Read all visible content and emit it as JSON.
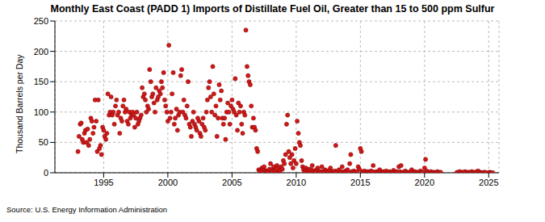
{
  "chart_data": {
    "type": "scatter",
    "title": "Monthly East Coast (PADD 1) Imports of Distillate Fuel Oil, Greater than 15 to 500 ppm Sulfur",
    "y_label": "Thousand Barrels per Day",
    "source": "Source: U.S. Energy Information Administration",
    "color": "#cc1a1a",
    "marker": "circle",
    "grid": true,
    "xlim": [
      1991.2,
      2025.8
    ],
    "xticks": [
      1995,
      2000,
      2005,
      2010,
      2015,
      2020,
      2025
    ],
    "ylim": [
      0,
      250
    ],
    "yticks": [
      0,
      50,
      100,
      150,
      200,
      250
    ],
    "x": [
      1993.0,
      1993.08,
      1993.17,
      1993.25,
      1993.33,
      1993.42,
      1993.5,
      1993.58,
      1993.67,
      1993.75,
      1993.83,
      1993.92,
      1994.0,
      1994.08,
      1994.17,
      1994.25,
      1994.33,
      1994.42,
      1994.5,
      1994.58,
      1994.67,
      1994.75,
      1994.83,
      1994.92,
      1995.0,
      1995.08,
      1995.17,
      1995.25,
      1995.33,
      1995.42,
      1995.5,
      1995.58,
      1995.67,
      1995.75,
      1995.83,
      1995.92,
      1996.0,
      1996.08,
      1996.17,
      1996.25,
      1996.33,
      1996.42,
      1996.5,
      1996.58,
      1996.67,
      1996.75,
      1996.83,
      1996.92,
      1997.0,
      1997.08,
      1997.17,
      1997.25,
      1997.33,
      1997.42,
      1997.5,
      1997.58,
      1997.67,
      1997.75,
      1997.83,
      1997.92,
      1998.0,
      1998.08,
      1998.17,
      1998.25,
      1998.33,
      1998.42,
      1998.5,
      1998.58,
      1998.67,
      1998.75,
      1998.83,
      1998.92,
      1999.0,
      1999.08,
      1999.17,
      1999.25,
      1999.33,
      1999.42,
      1999.5,
      1999.58,
      1999.67,
      1999.75,
      1999.83,
      1999.92,
      2000.0,
      2000.08,
      2000.17,
      2000.25,
      2000.33,
      2000.42,
      2000.5,
      2000.58,
      2000.67,
      2000.75,
      2000.83,
      2000.92,
      2001.0,
      2001.08,
      2001.17,
      2001.25,
      2001.33,
      2001.42,
      2001.5,
      2001.58,
      2001.67,
      2001.75,
      2001.83,
      2001.92,
      2002.0,
      2002.08,
      2002.17,
      2002.25,
      2002.33,
      2002.42,
      2002.5,
      2002.58,
      2002.67,
      2002.75,
      2002.83,
      2002.92,
      2003.0,
      2003.08,
      2003.17,
      2003.25,
      2003.33,
      2003.42,
      2003.5,
      2003.58,
      2003.67,
      2003.75,
      2003.83,
      2003.92,
      2004.0,
      2004.08,
      2004.17,
      2004.25,
      2004.33,
      2004.42,
      2004.5,
      2004.58,
      2004.67,
      2004.75,
      2004.83,
      2004.92,
      2005.0,
      2005.08,
      2005.17,
      2005.25,
      2005.33,
      2005.42,
      2005.5,
      2005.58,
      2005.67,
      2005.75,
      2005.83,
      2005.92,
      2006.0,
      2006.08,
      2006.17,
      2006.25,
      2006.33,
      2006.42,
      2006.5,
      2006.58,
      2006.67,
      2006.75,
      2006.83,
      2006.92,
      2007.0,
      2007.08,
      2007.17,
      2007.25,
      2007.33,
      2007.42,
      2007.5,
      2007.58,
      2007.67,
      2007.75,
      2007.83,
      2007.92,
      2008.0,
      2008.08,
      2008.17,
      2008.25,
      2008.33,
      2008.42,
      2008.5,
      2008.58,
      2008.67,
      2008.75,
      2008.83,
      2008.92,
      2009.0,
      2009.08,
      2009.17,
      2009.25,
      2009.33,
      2009.42,
      2009.5,
      2009.58,
      2009.67,
      2009.75,
      2009.83,
      2009.92,
      2010.0,
      2010.08,
      2010.17,
      2010.25,
      2010.33,
      2010.42,
      2010.5,
      2010.58,
      2010.67,
      2010.75,
      2010.83,
      2010.92,
      2011.0,
      2011.08,
      2011.17,
      2011.25,
      2011.33,
      2011.42,
      2011.5,
      2011.58,
      2011.67,
      2011.75,
      2011.83,
      2011.92,
      2012.0,
      2012.08,
      2012.17,
      2012.25,
      2012.33,
      2012.42,
      2012.5,
      2012.58,
      2012.67,
      2012.75,
      2012.83,
      2012.92,
      2013.0,
      2013.08,
      2013.17,
      2013.25,
      2013.33,
      2013.42,
      2013.5,
      2013.58,
      2013.67,
      2013.75,
      2013.83,
      2013.92,
      2014.0,
      2014.08,
      2014.17,
      2014.25,
      2014.33,
      2014.42,
      2014.5,
      2014.58,
      2014.67,
      2014.75,
      2014.83,
      2014.92,
      2015.0,
      2015.08,
      2015.17,
      2015.25,
      2015.33,
      2015.42,
      2015.5,
      2015.58,
      2015.67,
      2015.75,
      2015.83,
      2015.92,
      2016.0,
      2016.08,
      2016.17,
      2016.25,
      2016.33,
      2016.42,
      2016.5,
      2016.58,
      2016.67,
      2016.75,
      2016.83,
      2016.92,
      2017.0,
      2017.08,
      2017.17,
      2017.25,
      2017.33,
      2017.42,
      2017.5,
      2017.58,
      2017.67,
      2017.75,
      2017.83,
      2017.92,
      2018.0,
      2018.08,
      2018.17,
      2018.25,
      2018.33,
      2018.42,
      2018.5,
      2018.58,
      2018.67,
      2018.75,
      2018.83,
      2018.92,
      2019.0,
      2019.08,
      2019.17,
      2019.25,
      2019.33,
      2019.42,
      2019.5,
      2019.58,
      2019.67,
      2019.75,
      2019.83,
      2019.92,
      2020.0,
      2020.08,
      2020.17,
      2020.25,
      2020.33,
      2020.42,
      2020.5,
      2020.58,
      2020.67,
      2020.75,
      2020.83,
      2020.92,
      2021.0,
      2021.08,
      2021.17,
      2021.25,
      2022.5,
      2022.58,
      2022.67,
      2022.75,
      2022.83,
      2022.92,
      2023.0,
      2023.08,
      2023.17,
      2023.25,
      2023.33,
      2023.42,
      2023.5,
      2023.58,
      2023.67,
      2023.75,
      2023.83,
      2023.92,
      2024.0,
      2024.08,
      2024.17,
      2024.25,
      2024.33,
      2024.42,
      2024.5,
      2024.58,
      2024.67,
      2024.75,
      2024.83,
      2025.0,
      2025.08,
      2025.17,
      2025.25,
      2025.33
    ],
    "values": [
      35,
      60,
      80,
      82,
      55,
      50,
      65,
      70,
      50,
      72,
      45,
      55,
      90,
      85,
      65,
      75,
      120,
      85,
      35,
      120,
      40,
      45,
      30,
      75,
      70,
      60,
      55,
      65,
      130,
      95,
      100,
      125,
      95,
      100,
      80,
      110,
      120,
      95,
      100,
      65,
      90,
      85,
      110,
      120,
      100,
      105,
      85,
      80,
      100,
      90,
      95,
      100,
      95,
      75,
      90,
      100,
      80,
      85,
      90,
      95,
      140,
      125,
      130,
      120,
      100,
      110,
      105,
      170,
      150,
      125,
      130,
      115,
      100,
      140,
      120,
      125,
      135,
      130,
      150,
      140,
      165,
      120,
      110,
      100,
      85,
      210,
      90,
      100,
      130,
      165,
      80,
      90,
      105,
      70,
      95,
      100,
      160,
      170,
      100,
      120,
      95,
      90,
      110,
      150,
      80,
      75,
      60,
      85,
      100,
      80,
      75,
      70,
      90,
      85,
      65,
      60,
      80,
      90,
      75,
      70,
      100,
      120,
      140,
      150,
      125,
      100,
      175,
      130,
      95,
      110,
      60,
      90,
      145,
      120,
      135,
      90,
      80,
      90,
      55,
      100,
      115,
      100,
      80,
      110,
      120,
      105,
      100,
      155,
      95,
      70,
      115,
      100,
      110,
      80,
      65,
      100,
      95,
      235,
      175,
      160,
      150,
      145,
      110,
      75,
      90,
      75,
      70,
      40,
      35,
      5,
      2,
      3,
      8,
      5,
      10,
      4,
      2,
      1,
      3,
      6,
      15,
      5,
      3,
      10,
      2,
      5,
      12,
      8,
      1,
      3,
      10,
      6,
      20,
      15,
      30,
      80,
      95,
      35,
      25,
      15,
      30,
      8,
      20,
      40,
      15,
      85,
      65,
      50,
      45,
      20,
      10,
      5,
      2,
      8,
      4,
      3,
      6,
      2,
      5,
      12,
      3,
      1,
      4,
      2,
      8,
      3,
      1,
      2,
      10,
      2,
      1,
      5,
      3,
      0,
      2,
      4,
      8,
      1,
      2,
      0,
      3,
      45,
      2,
      1,
      5,
      0,
      2,
      10,
      1,
      0,
      3,
      2,
      5,
      1,
      15,
      30,
      2,
      0,
      3,
      1,
      0,
      2,
      10,
      6,
      40,
      35,
      2,
      1,
      3,
      0,
      1,
      2,
      0,
      1,
      3,
      2,
      12,
      1,
      0,
      2,
      1,
      0,
      5,
      1,
      0,
      2,
      1,
      0,
      3,
      0,
      1,
      2,
      0,
      1,
      0,
      4,
      1,
      0,
      2,
      0,
      10,
      2,
      12,
      0,
      1,
      0,
      3,
      0,
      1,
      0,
      0,
      2,
      5,
      1,
      0,
      2,
      0,
      1,
      0,
      0,
      3,
      0,
      1,
      0,
      8,
      22,
      3,
      0,
      1,
      0,
      2,
      0,
      0,
      1,
      0,
      0,
      2,
      0,
      0,
      1,
      0,
      1,
      0,
      2,
      0,
      0,
      1,
      0,
      2,
      0,
      0,
      1,
      0,
      0,
      2,
      0,
      1,
      0,
      0,
      2,
      3,
      0,
      1,
      0,
      0,
      0,
      1,
      0,
      0,
      0,
      1,
      0,
      0,
      0
    ]
  }
}
